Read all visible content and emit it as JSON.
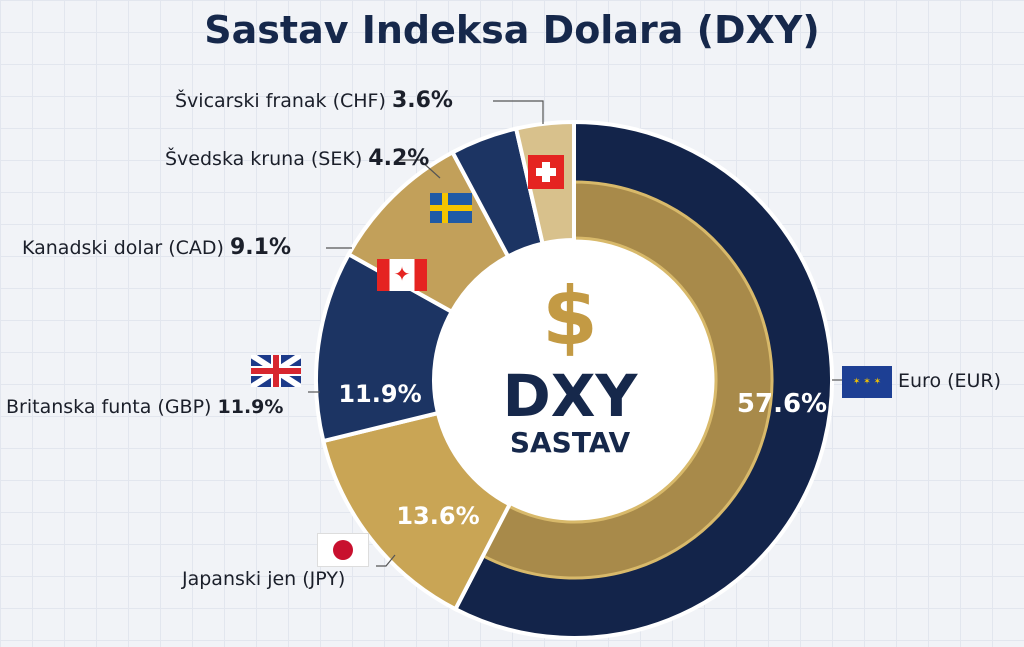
{
  "chart_data": {
    "type": "pie",
    "title": "Sastav Indeksa Dolara (DXY)",
    "center_label": {
      "symbol": "$",
      "line1": "DXY",
      "line2": "SASTAV"
    },
    "slices": [
      {
        "name": "Euro (EUR)",
        "value": 57.6,
        "display": "57.6%",
        "color": "#13244a"
      },
      {
        "name": "Japanski jen (JPY)",
        "value": 13.6,
        "display": "13.6%",
        "color": "#c9a555"
      },
      {
        "name": "Britanska funta (GBP)",
        "value": 11.9,
        "display": "11.9%",
        "color": "#1c3463"
      },
      {
        "name": "Kanadski dolar (CAD)",
        "value": 9.1,
        "display": "9.1%",
        "color": "#c2a05a"
      },
      {
        "name": "Švedska kruna (SEK)",
        "value": 4.2,
        "display": "4.2%",
        "color": "#1c3463"
      },
      {
        "name": "Švicarski franak (CHF)",
        "value": 3.6,
        "display": "3.6%",
        "color": "#d8c18c"
      }
    ]
  }
}
